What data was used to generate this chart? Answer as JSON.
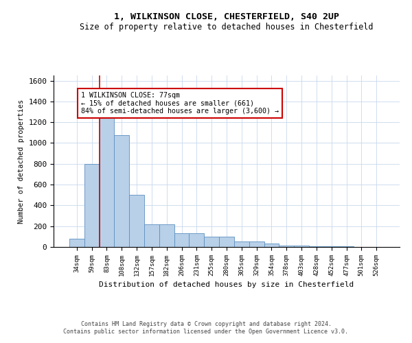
{
  "title_line1": "1, WILKINSON CLOSE, CHESTERFIELD, S40 2UP",
  "title_line2": "Size of property relative to detached houses in Chesterfield",
  "xlabel": "Distribution of detached houses by size in Chesterfield",
  "ylabel": "Number of detached properties",
  "footer_line1": "Contains HM Land Registry data © Crown copyright and database right 2024.",
  "footer_line2": "Contains public sector information licensed under the Open Government Licence v3.0.",
  "annotation_line1": "1 WILKINSON CLOSE: 77sqm",
  "annotation_line2": "← 15% of detached houses are smaller (661)",
  "annotation_line3": "84% of semi-detached houses are larger (3,600) →",
  "bar_categories": [
    "34sqm",
    "59sqm",
    "83sqm",
    "108sqm",
    "132sqm",
    "157sqm",
    "182sqm",
    "206sqm",
    "231sqm",
    "255sqm",
    "280sqm",
    "305sqm",
    "329sqm",
    "354sqm",
    "378sqm",
    "403sqm",
    "428sqm",
    "452sqm",
    "477sqm",
    "501sqm",
    "526sqm"
  ],
  "bar_heights": [
    80,
    800,
    1300,
    1075,
    500,
    215,
    215,
    130,
    130,
    100,
    100,
    50,
    50,
    30,
    10,
    10,
    5,
    5,
    5,
    3,
    3
  ],
  "bar_color": "#b8d0e8",
  "bar_edgecolor": "#5a8fc0",
  "highlight_line_color": "#cc0000",
  "highlight_bar_index": 2,
  "ylim": [
    0,
    1650
  ],
  "yticks": [
    0,
    200,
    400,
    600,
    800,
    1000,
    1200,
    1400,
    1600
  ],
  "grid_color": "#c8d8ec",
  "background_color": "#ffffff",
  "annotation_box_edgecolor": "#cc0000",
  "annotation_box_facecolor": "#ffffff",
  "fig_width": 6.0,
  "fig_height": 5.0,
  "dpi": 100
}
